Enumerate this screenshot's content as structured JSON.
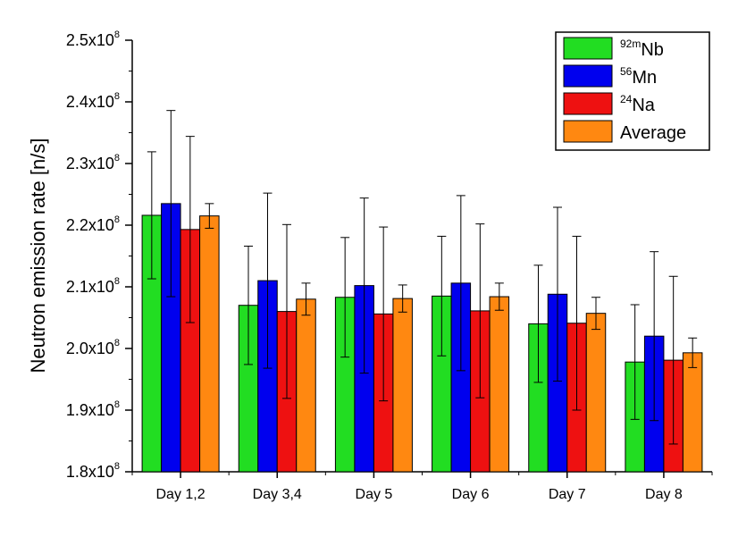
{
  "chart_data": {
    "type": "bar",
    "title": "",
    "xlabel": "",
    "ylabel": "Neutron emission rate [n/s]",
    "ylim": [
      180000000.0,
      250000000.0
    ],
    "yticks": [
      {
        "value": 180000000.0,
        "mantissa": "1.8x10",
        "exp": "8"
      },
      {
        "value": 190000000.0,
        "mantissa": "1.9x10",
        "exp": "8"
      },
      {
        "value": 200000000.0,
        "mantissa": "2.0x10",
        "exp": "8"
      },
      {
        "value": 210000000.0,
        "mantissa": "2.1x10",
        "exp": "8"
      },
      {
        "value": 220000000.0,
        "mantissa": "2.2x10",
        "exp": "8"
      },
      {
        "value": 230000000.0,
        "mantissa": "2.3x10",
        "exp": "8"
      },
      {
        "value": 240000000.0,
        "mantissa": "2.4x10",
        "exp": "8"
      },
      {
        "value": 250000000.0,
        "mantissa": "2.5x10",
        "exp": "8"
      }
    ],
    "categories": [
      "Day 1,2",
      "Day 3,4",
      "Day 5",
      "Day 6",
      "Day 7",
      "Day 8"
    ],
    "legend_position": "top-right",
    "series": [
      {
        "name": "Nb",
        "sup": "92m",
        "color": "#22dd22",
        "values": [
          221600000.0,
          207000000.0,
          208300000.0,
          208500000.0,
          204000000.0,
          197800000.0
        ],
        "errors": [
          10300000.0,
          9600000.0,
          9700000.0,
          9700000.0,
          9500000.0,
          9300000.0
        ]
      },
      {
        "name": "Mn",
        "sup": "56",
        "color": "#0000ee",
        "values": [
          223500000.0,
          211000000.0,
          210200000.0,
          210600000.0,
          208800000.0,
          202000000.0
        ],
        "errors": [
          15100000.0,
          14200000.0,
          14200000.0,
          14200000.0,
          14100000.0,
          13700000.0
        ]
      },
      {
        "name": "Na",
        "sup": "24",
        "color": "#ee1111",
        "values": [
          219300000.0,
          206000000.0,
          205600000.0,
          206100000.0,
          204100000.0,
          198100000.0
        ],
        "errors": [
          15100000.0,
          14100000.0,
          14100000.0,
          14100000.0,
          14100000.0,
          13600000.0
        ]
      },
      {
        "name": "Average",
        "sup": "",
        "color": "#ff8811",
        "values": [
          221500000.0,
          208000000.0,
          208100000.0,
          208400000.0,
          205700000.0,
          199300000.0
        ],
        "errors": [
          2000000.0,
          2600000.0,
          2200000.0,
          2200000.0,
          2600000.0,
          2400000.0
        ]
      }
    ]
  }
}
